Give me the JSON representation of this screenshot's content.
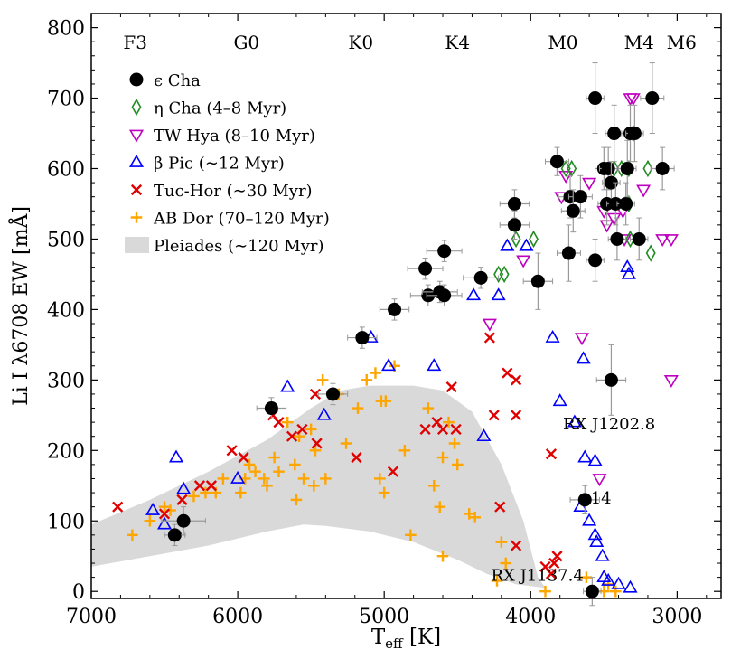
{
  "chart_data": {
    "type": "scatter",
    "xlabel_main": "T",
    "xlabel_sub": "eff",
    "xlabel_unit": " [K]",
    "ylabel": "Li I λ6708 EW [mÅ]",
    "xlim": [
      7000,
      2700
    ],
    "ylim": [
      -10,
      820
    ],
    "x_reversed": true,
    "xticks": [
      7000,
      6000,
      5000,
      4000,
      3000
    ],
    "yticks": [
      0,
      100,
      200,
      300,
      400,
      500,
      600,
      700,
      800
    ],
    "grid": false,
    "legend_position": "upper-left",
    "spectral_types": [
      {
        "label": "F3",
        "teff": 6700
      },
      {
        "label": "G0",
        "teff": 5940
      },
      {
        "label": "K0",
        "teff": 5160
      },
      {
        "label": "K4",
        "teff": 4500
      },
      {
        "label": "M0",
        "teff": 3780
      },
      {
        "label": "M4",
        "teff": 3260
      },
      {
        "label": "M6",
        "teff": 2970
      }
    ],
    "annotations": [
      {
        "text": "RX J1202.8",
        "teff": 3780,
        "ew": 230
      },
      {
        "text": "14",
        "teff": 3590,
        "ew": 125
      },
      {
        "text": "RX J1137.4",
        "teff": 4270,
        "ew": 15
      }
    ],
    "pleiades_band": {
      "name": "Pleiades (∼120 Myr)",
      "color": "#d9d9d9",
      "upper": [
        [
          7000,
          95
        ],
        [
          6600,
          130
        ],
        [
          6200,
          170
        ],
        [
          5800,
          215
        ],
        [
          5500,
          260
        ],
        [
          5300,
          285
        ],
        [
          5100,
          292
        ],
        [
          4800,
          292
        ],
        [
          4600,
          285
        ],
        [
          4400,
          255
        ],
        [
          4200,
          180
        ],
        [
          4050,
          100
        ],
        [
          3950,
          20
        ],
        [
          3900,
          5
        ]
      ],
      "lower": [
        [
          3900,
          5
        ],
        [
          4100,
          10
        ],
        [
          4300,
          25
        ],
        [
          4500,
          45
        ],
        [
          4800,
          70
        ],
        [
          5100,
          85
        ],
        [
          5400,
          93
        ],
        [
          5550,
          95
        ],
        [
          5800,
          85
        ],
        [
          6200,
          65
        ],
        [
          6600,
          50
        ],
        [
          7000,
          35
        ]
      ]
    },
    "series": [
      {
        "name": "ϵ Cha",
        "marker": "filled-circle",
        "color": "#000000",
        "points": [
          {
            "x": 6430,
            "y": 80,
            "xerr": 70,
            "yerr": 15
          },
          {
            "x": 6370,
            "y": 100,
            "xerr": 150,
            "yerr": 20
          },
          {
            "x": 5770,
            "y": 260,
            "xerr": 100,
            "yerr": 15
          },
          {
            "x": 5350,
            "y": 280,
            "xerr": 100,
            "yerr": 15
          },
          {
            "x": 5150,
            "y": 360,
            "xerr": 100,
            "yerr": 15
          },
          {
            "x": 4930,
            "y": 400,
            "xerr": 100,
            "yerr": 15
          },
          {
            "x": 4720,
            "y": 458,
            "xerr": 120,
            "yerr": 15
          },
          {
            "x": 4700,
            "y": 420,
            "xerr": 120,
            "yerr": 15
          },
          {
            "x": 4620,
            "y": 425,
            "xerr": 120,
            "yerr": 15
          },
          {
            "x": 4590,
            "y": 483,
            "xerr": 120,
            "yerr": 15
          },
          {
            "x": 4590,
            "y": 420,
            "xerr": 120,
            "yerr": 15
          },
          {
            "x": 4340,
            "y": 445,
            "xerr": 120,
            "yerr": 15
          },
          {
            "x": 4110,
            "y": 550,
            "xerr": 100,
            "yerr": 20
          },
          {
            "x": 4110,
            "y": 520,
            "xerr": 100,
            "yerr": 20
          },
          {
            "x": 3950,
            "y": 440,
            "xerr": 100,
            "yerr": 40
          },
          {
            "x": 3820,
            "y": 610,
            "xerr": 80,
            "yerr": 20
          },
          {
            "x": 3740,
            "y": 480,
            "xerr": 80,
            "yerr": 40
          },
          {
            "x": 3730,
            "y": 560,
            "xerr": 80,
            "yerr": 30
          },
          {
            "x": 3710,
            "y": 540,
            "xerr": 80,
            "yerr": 30
          },
          {
            "x": 3660,
            "y": 560,
            "xerr": 80,
            "yerr": 30
          },
          {
            "x": 3560,
            "y": 700,
            "xerr": 60,
            "yerr": 50
          },
          {
            "x": 3560,
            "y": 470,
            "xerr": 60,
            "yerr": 30
          },
          {
            "x": 3500,
            "y": 600,
            "xerr": 60,
            "yerr": 30
          },
          {
            "x": 3480,
            "y": 550,
            "xerr": 60,
            "yerr": 30
          },
          {
            "x": 3470,
            "y": 600,
            "xerr": 60,
            "yerr": 30
          },
          {
            "x": 3450,
            "y": 580,
            "xerr": 60,
            "yerr": 30
          },
          {
            "x": 3430,
            "y": 650,
            "xerr": 60,
            "yerr": 40
          },
          {
            "x": 3420,
            "y": 550,
            "xerr": 60,
            "yerr": 30
          },
          {
            "x": 3410,
            "y": 500,
            "xerr": 60,
            "yerr": 30
          },
          {
            "x": 3350,
            "y": 550,
            "xerr": 60,
            "yerr": 30
          },
          {
            "x": 3340,
            "y": 600,
            "xerr": 60,
            "yerr": 40
          },
          {
            "x": 3320,
            "y": 650,
            "xerr": 60,
            "yerr": 40
          },
          {
            "x": 3290,
            "y": 650,
            "xerr": 60,
            "yerr": 40
          },
          {
            "x": 3260,
            "y": 500,
            "xerr": 60,
            "yerr": 30
          },
          {
            "x": 3170,
            "y": 700,
            "xerr": 80,
            "yerr": 50
          },
          {
            "x": 3100,
            "y": 600,
            "xerr": 80,
            "yerr": 30
          },
          {
            "x": 3450,
            "y": 300,
            "xerr": 100,
            "yerr": 50
          },
          {
            "x": 3630,
            "y": 130,
            "xerr": 100,
            "yerr": 20
          },
          {
            "x": 3580,
            "y": 0,
            "xerr": 60,
            "yerr": 20
          }
        ]
      },
      {
        "name": "η Cha (4–8 Myr)",
        "marker": "open-diamond",
        "color": "#228b22",
        "points": [
          {
            "x": 4220,
            "y": 450
          },
          {
            "x": 4180,
            "y": 450
          },
          {
            "x": 4100,
            "y": 500
          },
          {
            "x": 3980,
            "y": 500
          },
          {
            "x": 3760,
            "y": 600
          },
          {
            "x": 3720,
            "y": 600
          },
          {
            "x": 3430,
            "y": 600
          },
          {
            "x": 3380,
            "y": 600
          },
          {
            "x": 3330,
            "y": 600
          },
          {
            "x": 3300,
            "y": 650
          },
          {
            "x": 3200,
            "y": 600
          },
          {
            "x": 3180,
            "y": 480
          },
          {
            "x": 3320,
            "y": 500
          },
          {
            "x": 3330,
            "y": 550
          }
        ]
      },
      {
        "name": "TW Hya (8–10 Myr)",
        "marker": "open-triangle-down",
        "color": "#bf00bf",
        "points": [
          {
            "x": 4280,
            "y": 380
          },
          {
            "x": 4050,
            "y": 470
          },
          {
            "x": 3790,
            "y": 560
          },
          {
            "x": 3760,
            "y": 590
          },
          {
            "x": 3650,
            "y": 360
          },
          {
            "x": 3530,
            "y": 160
          },
          {
            "x": 3600,
            "y": 580
          },
          {
            "x": 3500,
            "y": 540
          },
          {
            "x": 3480,
            "y": 520
          },
          {
            "x": 3370,
            "y": 540
          },
          {
            "x": 3320,
            "y": 700
          },
          {
            "x": 3230,
            "y": 570
          },
          {
            "x": 3040,
            "y": 500
          },
          {
            "x": 3100,
            "y": 500
          },
          {
            "x": 3040,
            "y": 300
          },
          {
            "x": 3430,
            "y": 530
          },
          {
            "x": 3300,
            "y": 700
          },
          {
            "x": 3360,
            "y": 500
          }
        ]
      },
      {
        "name": "β Pic (∼12 Myr)",
        "marker": "open-triangle-up",
        "color": "#0000ff",
        "points": [
          {
            "x": 6580,
            "y": 115
          },
          {
            "x": 6500,
            "y": 95
          },
          {
            "x": 6420,
            "y": 190
          },
          {
            "x": 6370,
            "y": 145
          },
          {
            "x": 6000,
            "y": 160
          },
          {
            "x": 5660,
            "y": 290
          },
          {
            "x": 5410,
            "y": 250
          },
          {
            "x": 5090,
            "y": 360
          },
          {
            "x": 4970,
            "y": 320
          },
          {
            "x": 4660,
            "y": 320
          },
          {
            "x": 4390,
            "y": 420
          },
          {
            "x": 4220,
            "y": 420
          },
          {
            "x": 4320,
            "y": 220
          },
          {
            "x": 4160,
            "y": 490
          },
          {
            "x": 4030,
            "y": 490
          },
          {
            "x": 3850,
            "y": 360
          },
          {
            "x": 3800,
            "y": 270
          },
          {
            "x": 3700,
            "y": 240
          },
          {
            "x": 3640,
            "y": 330
          },
          {
            "x": 3630,
            "y": 190
          },
          {
            "x": 3560,
            "y": 185
          },
          {
            "x": 3660,
            "y": 120
          },
          {
            "x": 3600,
            "y": 100
          },
          {
            "x": 3560,
            "y": 80
          },
          {
            "x": 3550,
            "y": 70
          },
          {
            "x": 3510,
            "y": 50
          },
          {
            "x": 3340,
            "y": 460
          },
          {
            "x": 3330,
            "y": 450
          },
          {
            "x": 3500,
            "y": 20
          },
          {
            "x": 3470,
            "y": 15
          },
          {
            "x": 3400,
            "y": 10
          },
          {
            "x": 3320,
            "y": 5
          }
        ]
      },
      {
        "name": "Tuc-Hor (∼30 Myr)",
        "marker": "x",
        "color": "#e00000",
        "points": [
          {
            "x": 6820,
            "y": 120
          },
          {
            "x": 6500,
            "y": 110
          },
          {
            "x": 6380,
            "y": 130
          },
          {
            "x": 6260,
            "y": 150
          },
          {
            "x": 6180,
            "y": 150
          },
          {
            "x": 6040,
            "y": 200
          },
          {
            "x": 5960,
            "y": 190
          },
          {
            "x": 5760,
            "y": 250
          },
          {
            "x": 5720,
            "y": 240
          },
          {
            "x": 5630,
            "y": 220
          },
          {
            "x": 5560,
            "y": 230
          },
          {
            "x": 5470,
            "y": 280
          },
          {
            "x": 5460,
            "y": 210
          },
          {
            "x": 5190,
            "y": 190
          },
          {
            "x": 4940,
            "y": 170
          },
          {
            "x": 4720,
            "y": 230
          },
          {
            "x": 4640,
            "y": 240
          },
          {
            "x": 4600,
            "y": 230
          },
          {
            "x": 4540,
            "y": 290
          },
          {
            "x": 4510,
            "y": 230
          },
          {
            "x": 4280,
            "y": 360
          },
          {
            "x": 4250,
            "y": 250
          },
          {
            "x": 4160,
            "y": 310
          },
          {
            "x": 4100,
            "y": 300
          },
          {
            "x": 4210,
            "y": 120
          },
          {
            "x": 4100,
            "y": 250
          },
          {
            "x": 4100,
            "y": 65
          },
          {
            "x": 3860,
            "y": 195
          },
          {
            "x": 3820,
            "y": 50
          },
          {
            "x": 3900,
            "y": 35
          },
          {
            "x": 3840,
            "y": 40
          },
          {
            "x": 3860,
            "y": 25
          }
        ]
      },
      {
        "name": "AB Dor (70–120 Myr)",
        "marker": "plus",
        "color": "#ffa500",
        "points": [
          {
            "x": 6720,
            "y": 80
          },
          {
            "x": 6600,
            "y": 100
          },
          {
            "x": 6500,
            "y": 120
          },
          {
            "x": 6460,
            "y": 115
          },
          {
            "x": 6300,
            "y": 135
          },
          {
            "x": 6220,
            "y": 140
          },
          {
            "x": 6150,
            "y": 140
          },
          {
            "x": 6100,
            "y": 160
          },
          {
            "x": 5980,
            "y": 140
          },
          {
            "x": 5950,
            "y": 160
          },
          {
            "x": 5920,
            "y": 180
          },
          {
            "x": 5880,
            "y": 170
          },
          {
            "x": 5820,
            "y": 160
          },
          {
            "x": 5750,
            "y": 190
          },
          {
            "x": 5720,
            "y": 170
          },
          {
            "x": 5660,
            "y": 240
          },
          {
            "x": 5610,
            "y": 180
          },
          {
            "x": 5580,
            "y": 220
          },
          {
            "x": 5550,
            "y": 160
          },
          {
            "x": 5500,
            "y": 230
          },
          {
            "x": 5480,
            "y": 150
          },
          {
            "x": 5470,
            "y": 200
          },
          {
            "x": 5420,
            "y": 300
          },
          {
            "x": 5400,
            "y": 160
          },
          {
            "x": 5310,
            "y": 280
          },
          {
            "x": 5260,
            "y": 210
          },
          {
            "x": 5180,
            "y": 260
          },
          {
            "x": 5120,
            "y": 300
          },
          {
            "x": 5060,
            "y": 310
          },
          {
            "x": 5020,
            "y": 270
          },
          {
            "x": 4990,
            "y": 270
          },
          {
            "x": 4930,
            "y": 320
          },
          {
            "x": 4860,
            "y": 200
          },
          {
            "x": 4820,
            "y": 80
          },
          {
            "x": 4700,
            "y": 260
          },
          {
            "x": 4660,
            "y": 150
          },
          {
            "x": 4620,
            "y": 120
          },
          {
            "x": 4600,
            "y": 190
          },
          {
            "x": 4560,
            "y": 240
          },
          {
            "x": 4520,
            "y": 210
          },
          {
            "x": 4500,
            "y": 180
          },
          {
            "x": 4420,
            "y": 110
          },
          {
            "x": 4380,
            "y": 105
          },
          {
            "x": 4200,
            "y": 70
          },
          {
            "x": 4170,
            "y": 40
          },
          {
            "x": 4230,
            "y": 15
          },
          {
            "x": 4600,
            "y": 50
          },
          {
            "x": 5000,
            "y": 140
          },
          {
            "x": 5030,
            "y": 160
          },
          {
            "x": 5600,
            "y": 130
          },
          {
            "x": 5800,
            "y": 150
          },
          {
            "x": 3620,
            "y": 20
          },
          {
            "x": 3560,
            "y": 0
          },
          {
            "x": 3500,
            "y": 0
          },
          {
            "x": 3470,
            "y": 10
          },
          {
            "x": 3900,
            "y": 0
          },
          {
            "x": 3420,
            "y": 0
          }
        ]
      }
    ]
  }
}
